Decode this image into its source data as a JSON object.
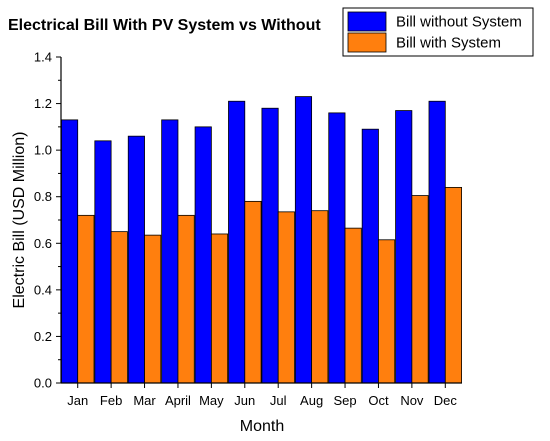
{
  "chart_data": {
    "type": "bar",
    "title": "Electrical Bill With PV System vs Without",
    "xlabel": "Month",
    "ylabel": "Electric Bill (USD Million)",
    "ylim": [
      0,
      1.4
    ],
    "yticks": [
      "0.0",
      "0.2",
      "0.4",
      "0.6",
      "0.8",
      "1.0",
      "1.2",
      "1.4"
    ],
    "categories": [
      "Jan",
      "Feb",
      "Mar",
      "April",
      "May",
      "Jun",
      "Jul",
      "Aug",
      "Sep",
      "Oct",
      "Nov",
      "Dec"
    ],
    "series": [
      {
        "name": "Bill without System",
        "color": "#0000ff",
        "values": [
          1.13,
          1.04,
          1.06,
          1.13,
          1.1,
          1.21,
          1.18,
          1.23,
          1.16,
          1.09,
          1.17,
          1.21
        ]
      },
      {
        "name": "Bill with System",
        "color": "#ff7f0e",
        "values": [
          0.72,
          0.65,
          0.635,
          0.72,
          0.64,
          0.78,
          0.735,
          0.74,
          0.665,
          0.615,
          0.805,
          0.84
        ]
      }
    ],
    "legend": "top-right",
    "grid": false
  }
}
